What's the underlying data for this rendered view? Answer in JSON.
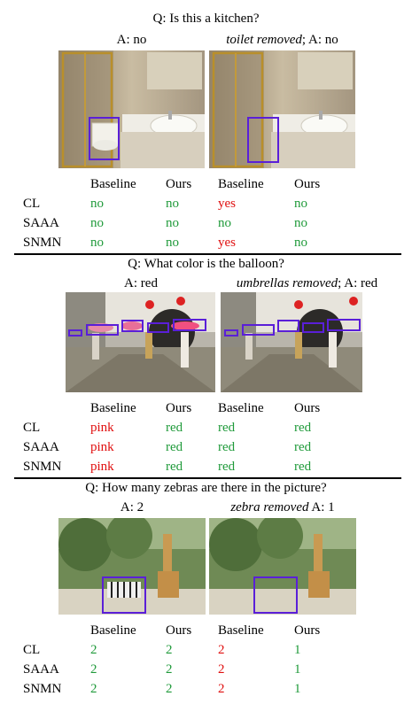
{
  "colors": {
    "correct": "#1f9a3a",
    "wrong": "#e01010",
    "box": "#5a1fd8"
  },
  "columns": [
    "Baseline",
    "Ours",
    "Baseline",
    "Ours"
  ],
  "rows": [
    "CL",
    "SAAA",
    "SNMN"
  ],
  "sections": [
    {
      "question": "Q: Is this a kitchen?",
      "left_answer": "A: no",
      "right_note": "toilet removed",
      "right_answer": "; A: no",
      "results": [
        [
          {
            "v": "no",
            "ok": true
          },
          {
            "v": "no",
            "ok": true
          },
          {
            "v": "yes",
            "ok": false
          },
          {
            "v": "no",
            "ok": true
          }
        ],
        [
          {
            "v": "no",
            "ok": true
          },
          {
            "v": "no",
            "ok": true
          },
          {
            "v": "no",
            "ok": true
          },
          {
            "v": "no",
            "ok": true
          }
        ],
        [
          {
            "v": "no",
            "ok": true
          },
          {
            "v": "no",
            "ok": true
          },
          {
            "v": "yes",
            "ok": false
          },
          {
            "v": "no",
            "ok": true
          }
        ]
      ]
    },
    {
      "question": "Q: What color is the balloon?",
      "left_answer": "A: red",
      "right_note": "umbrellas removed",
      "right_answer": "; A: red",
      "results": [
        [
          {
            "v": "pink",
            "ok": false
          },
          {
            "v": "red",
            "ok": true
          },
          {
            "v": "red",
            "ok": true
          },
          {
            "v": "red",
            "ok": true
          }
        ],
        [
          {
            "v": "pink",
            "ok": false
          },
          {
            "v": "red",
            "ok": true
          },
          {
            "v": "red",
            "ok": true
          },
          {
            "v": "red",
            "ok": true
          }
        ],
        [
          {
            "v": "pink",
            "ok": false
          },
          {
            "v": "red",
            "ok": true
          },
          {
            "v": "red",
            "ok": true
          },
          {
            "v": "red",
            "ok": true
          }
        ]
      ]
    },
    {
      "question": "Q: How many zebras are there in the picture?",
      "left_answer": "A: 2",
      "right_note": "zebra removed",
      "right_answer": " A: 1",
      "results": [
        [
          {
            "v": "2",
            "ok": true
          },
          {
            "v": "2",
            "ok": true
          },
          {
            "v": "2",
            "ok": false
          },
          {
            "v": "1",
            "ok": true
          }
        ],
        [
          {
            "v": "2",
            "ok": true
          },
          {
            "v": "2",
            "ok": true
          },
          {
            "v": "2",
            "ok": false
          },
          {
            "v": "1",
            "ok": true
          }
        ],
        [
          {
            "v": "2",
            "ok": true
          },
          {
            "v": "2",
            "ok": true
          },
          {
            "v": "2",
            "ok": false
          },
          {
            "v": "1",
            "ok": true
          }
        ]
      ]
    }
  ]
}
